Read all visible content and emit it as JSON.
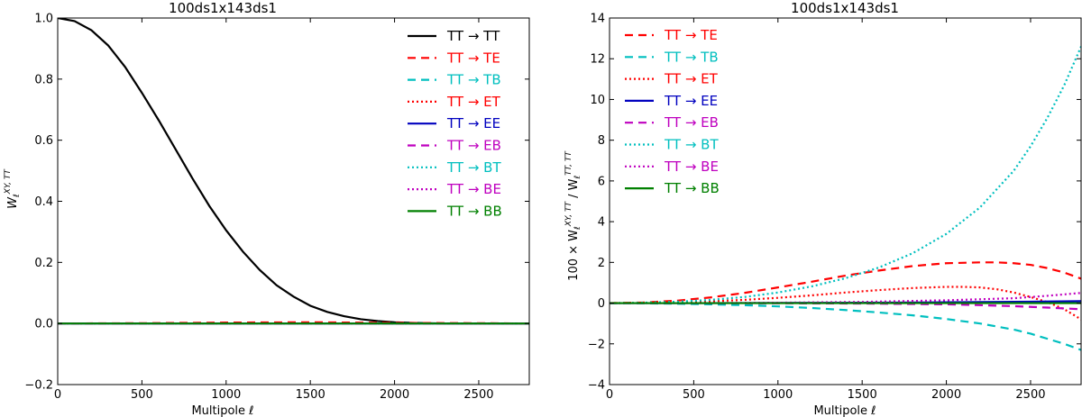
{
  "chart_data": [
    {
      "type": "line",
      "title": "100ds1x143ds1",
      "xlabel": "Multipole ℓ",
      "ylabel_main": "W",
      "ylabel_sub": "ℓ",
      "ylabel_sup": "XY, TT",
      "xlim": [
        0,
        2800
      ],
      "ylim": [
        -0.2,
        1.0
      ],
      "xticks": [
        0,
        500,
        1000,
        1500,
        2000,
        2500
      ],
      "yticks": [
        -0.2,
        0.0,
        0.2,
        0.4,
        0.6,
        0.8,
        1.0
      ],
      "xtick_labels": [
        "0",
        "500",
        "1000",
        "1500",
        "2000",
        "2500"
      ],
      "ytick_labels": [
        "−0.2",
        "0.0",
        "0.2",
        "0.4",
        "0.6",
        "0.8",
        "1.0"
      ],
      "legend_position": "top-right",
      "series": [
        {
          "name": "TT → TT",
          "color": "#000000",
          "dash": "solid",
          "x": [
            0,
            100,
            200,
            300,
            400,
            500,
            600,
            700,
            800,
            900,
            1000,
            1100,
            1200,
            1300,
            1400,
            1500,
            1600,
            1700,
            1800,
            1900,
            2000,
            2100,
            2200,
            2300,
            2400,
            2500,
            2600,
            2700,
            2800
          ],
          "y": [
            1.0,
            0.99,
            0.96,
            0.91,
            0.84,
            0.755,
            0.665,
            0.57,
            0.475,
            0.385,
            0.305,
            0.235,
            0.175,
            0.125,
            0.088,
            0.058,
            0.038,
            0.024,
            0.014,
            0.008,
            0.004,
            0.002,
            0.001,
            0.0,
            0.0,
            0.0,
            0.0,
            0.0,
            0.0
          ]
        },
        {
          "name": "TT → TE",
          "color": "#ff0000",
          "dash": "dashed",
          "x": [
            0,
            500,
            1000,
            1500,
            2000,
            2500,
            2800
          ],
          "y": [
            0,
            0.001,
            0.003,
            0.004,
            0.002,
            0.001,
            0.0
          ]
        },
        {
          "name": "TT → TB",
          "color": "#00bfbf",
          "dash": "dashed",
          "x": [
            0,
            2800
          ],
          "y": [
            0,
            0
          ]
        },
        {
          "name": "TT → ET",
          "color": "#ff0000",
          "dash": "dotted",
          "x": [
            0,
            2800
          ],
          "y": [
            0,
            0
          ]
        },
        {
          "name": "TT → EE",
          "color": "#0000bf",
          "dash": "solid",
          "x": [
            0,
            2800
          ],
          "y": [
            0,
            0
          ]
        },
        {
          "name": "TT → EB",
          "color": "#bf00bf",
          "dash": "dashed",
          "x": [
            0,
            2800
          ],
          "y": [
            0,
            0
          ]
        },
        {
          "name": "TT → BT",
          "color": "#00bfbf",
          "dash": "dotted",
          "x": [
            0,
            2800
          ],
          "y": [
            0,
            0
          ]
        },
        {
          "name": "TT → BE",
          "color": "#bf00bf",
          "dash": "dotted",
          "x": [
            0,
            2800
          ],
          "y": [
            0,
            0
          ]
        },
        {
          "name": "TT → BB",
          "color": "#008000",
          "dash": "solid",
          "x": [
            0,
            2800
          ],
          "y": [
            0,
            0
          ]
        }
      ]
    },
    {
      "type": "line",
      "title": "100ds1x143ds1",
      "xlabel": "Multipole ℓ",
      "ylabel_prefix": "100 × W",
      "ylabel_sub": "ℓ",
      "ylabel_sup": "XY, TT",
      "ylabel_mid": " / W",
      "ylabel_sub2": "ℓ",
      "ylabel_sup2": "TT, TT",
      "xlim": [
        0,
        2800
      ],
      "ylim": [
        -4,
        14
      ],
      "xticks": [
        0,
        500,
        1000,
        1500,
        2000,
        2500
      ],
      "yticks": [
        -4,
        -2,
        0,
        2,
        4,
        6,
        8,
        10,
        12,
        14
      ],
      "xtick_labels": [
        "0",
        "500",
        "1000",
        "1500",
        "2000",
        "2500"
      ],
      "ytick_labels": [
        "−4",
        "−2",
        "0",
        "2",
        "4",
        "6",
        "8",
        "10",
        "12",
        "14"
      ],
      "legend_position": "top-left",
      "series": [
        {
          "name": "TT → TE",
          "color": "#ff0000",
          "dash": "dashed",
          "x": [
            0,
            200,
            400,
            600,
            800,
            1000,
            1200,
            1400,
            1600,
            1800,
            2000,
            2200,
            2300,
            2400,
            2500,
            2600,
            2700,
            2800
          ],
          "y": [
            0.0,
            0.03,
            0.12,
            0.28,
            0.5,
            0.77,
            1.05,
            1.35,
            1.6,
            1.82,
            1.96,
            2.0,
            2.0,
            1.96,
            1.88,
            1.72,
            1.5,
            1.2
          ]
        },
        {
          "name": "TT → TB",
          "color": "#00bfbf",
          "dash": "dashed",
          "x": [
            0,
            200,
            400,
            600,
            800,
            1000,
            1200,
            1400,
            1600,
            1800,
            2000,
            2200,
            2400,
            2500,
            2600,
            2700,
            2800
          ],
          "y": [
            0.0,
            -0.01,
            -0.03,
            -0.06,
            -0.1,
            -0.16,
            -0.24,
            -0.34,
            -0.46,
            -0.6,
            -0.78,
            -1.0,
            -1.3,
            -1.5,
            -1.75,
            -2.0,
            -2.3
          ]
        },
        {
          "name": "TT → ET",
          "color": "#ff0000",
          "dash": "dotted",
          "x": [
            0,
            200,
            400,
            600,
            800,
            1000,
            1200,
            1400,
            1600,
            1800,
            2000,
            2100,
            2200,
            2300,
            2400,
            2500,
            2600,
            2700,
            2800
          ],
          "y": [
            0.0,
            0.01,
            0.04,
            0.09,
            0.16,
            0.26,
            0.38,
            0.52,
            0.64,
            0.74,
            0.8,
            0.8,
            0.77,
            0.68,
            0.52,
            0.3,
            0.05,
            -0.3,
            -0.8
          ]
        },
        {
          "name": "TT → EE",
          "color": "#0000bf",
          "dash": "solid",
          "x": [
            0,
            500,
            1000,
            1500,
            2000,
            2500,
            2800
          ],
          "y": [
            0.0,
            0.0,
            0.01,
            0.02,
            0.04,
            0.07,
            0.1
          ]
        },
        {
          "name": "TT → EB",
          "color": "#bf00bf",
          "dash": "dashed",
          "x": [
            0,
            500,
            1000,
            1500,
            2000,
            2200,
            2400,
            2600,
            2800
          ],
          "y": [
            0.0,
            0.0,
            -0.01,
            -0.02,
            -0.06,
            -0.1,
            -0.15,
            -0.22,
            -0.3
          ]
        },
        {
          "name": "TT → BT",
          "color": "#00bfbf",
          "dash": "dotted",
          "x": [
            0,
            200,
            400,
            600,
            800,
            1000,
            1200,
            1400,
            1600,
            1800,
            2000,
            2200,
            2400,
            2500,
            2600,
            2700,
            2800
          ],
          "y": [
            0.0,
            0.02,
            0.07,
            0.16,
            0.3,
            0.52,
            0.82,
            1.22,
            1.75,
            2.45,
            3.4,
            4.7,
            6.5,
            7.7,
            9.1,
            10.7,
            12.6
          ]
        },
        {
          "name": "TT → BE",
          "color": "#bf00bf",
          "dash": "dotted",
          "x": [
            0,
            500,
            1000,
            1500,
            2000,
            2400,
            2600,
            2800
          ],
          "y": [
            0.0,
            0.0,
            0.02,
            0.06,
            0.14,
            0.24,
            0.36,
            0.5
          ]
        },
        {
          "name": "TT → BB",
          "color": "#008000",
          "dash": "solid",
          "x": [
            0,
            2800
          ],
          "y": [
            0,
            0
          ]
        }
      ]
    }
  ]
}
